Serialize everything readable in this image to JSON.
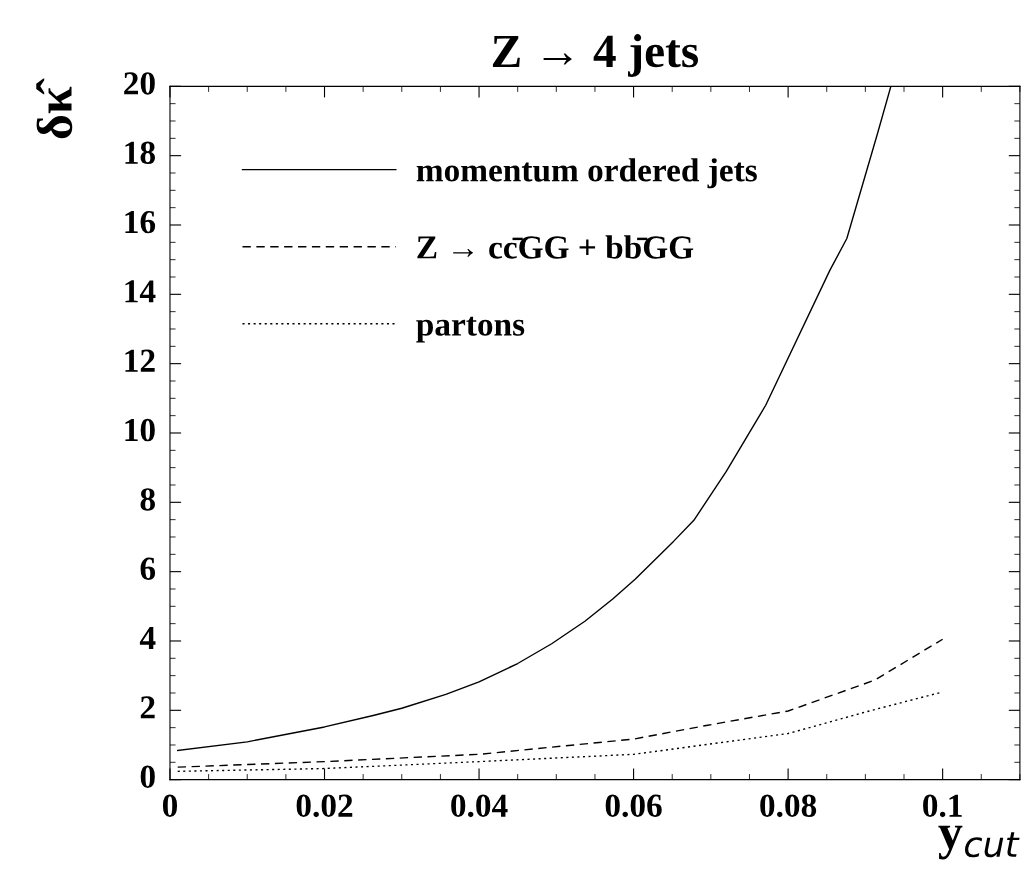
{
  "chart_data": {
    "type": "line",
    "title": "Z → 4 jets",
    "xlabel": "y$_{cut}$",
    "ylabel": "δκ̂",
    "xlim": [
      0,
      0.11
    ],
    "xticks": [
      0,
      0.02,
      0.04,
      0.06,
      0.08,
      {
        "value": 0.1,
        "label": "0.1"
      }
    ],
    "ylim": [
      0,
      20
    ],
    "yticks": [
      0,
      2,
      4,
      6,
      8,
      10,
      12,
      14,
      16,
      18,
      20
    ],
    "grid": false,
    "legend": "top left",
    "marker": "none",
    "series": [
      {
        "name": "momentum ordered jets",
        "color": "#000000",
        "line_style": "solid",
        "x": [
          0.001,
          0.01,
          0.02,
          0.0263,
          0.03,
          0.0357,
          0.04,
          0.045,
          0.0494,
          0.0537,
          0.0573,
          0.0602,
          0.0652,
          0.0678,
          0.072,
          0.0771,
          0.0854,
          0.0876,
          0.0916,
          0.0933
        ],
        "values": [
          0.84,
          1.09,
          1.52,
          1.85,
          2.06,
          2.46,
          2.82,
          3.35,
          3.92,
          4.57,
          5.21,
          5.78,
          6.88,
          7.48,
          8.89,
          10.8,
          14.69,
          15.61,
          18.66,
          20
        ]
      },
      {
        "name": "Z → cc̄GG + bb̄GG",
        "color": "#000000",
        "line_style": "dashed",
        "x": [
          0.001,
          0.02,
          0.04,
          0.06,
          0.0696,
          0.08,
          0.0912,
          0.1
        ],
        "values": [
          0.36,
          0.52,
          0.73,
          1.17,
          1.57,
          1.98,
          2.87,
          4.05
        ]
      },
      {
        "name": "partons",
        "color": "#000000",
        "line_style": "dotted",
        "x": [
          0.001,
          0.02,
          0.04,
          0.06,
          0.08,
          0.0905,
          0.1
        ],
        "values": [
          0.24,
          0.32,
          0.52,
          0.73,
          1.33,
          1.98,
          2.53
        ]
      }
    ]
  }
}
